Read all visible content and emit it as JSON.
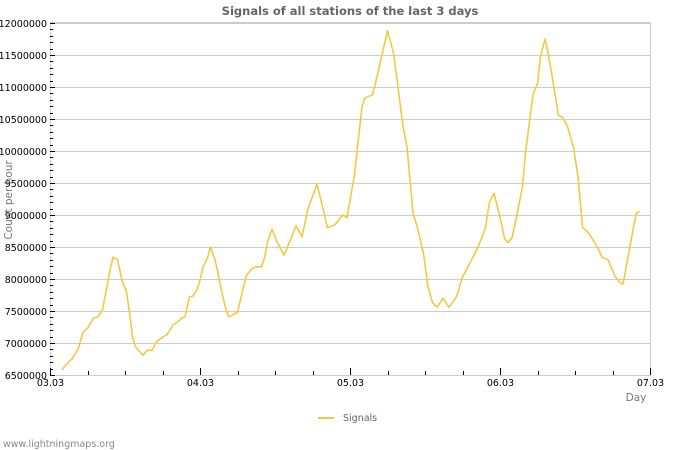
{
  "chart_data": {
    "type": "line",
    "title": "Signals of all stations of the last 3 days",
    "xlabel": "Day",
    "ylabel": "Count per hour",
    "xlim": [
      0,
      4
    ],
    "ylim": [
      6500000,
      12000000
    ],
    "x_tick_labels": [
      "03.03",
      "04.03",
      "05.03",
      "06.03",
      "07.03"
    ],
    "y_tick_labels": [
      "6500000",
      "7000000",
      "7500000",
      "8000000",
      "8500000",
      "9000000",
      "9500000",
      "10000000",
      "10500000",
      "11000000",
      "11500000",
      "12000000"
    ],
    "y_ticks": [
      6500000,
      7000000,
      7500000,
      8000000,
      8500000,
      9000000,
      9500000,
      10000000,
      10500000,
      11000000,
      11500000,
      12000000
    ],
    "grid": true,
    "legend_position": "bottom-center",
    "series": [
      {
        "name": "Signals",
        "color": "#f5c842",
        "points": [
          [
            0.08,
            6580000
          ],
          [
            0.11,
            6670000
          ],
          [
            0.15,
            6760000
          ],
          [
            0.19,
            6920000
          ],
          [
            0.22,
            7170000
          ],
          [
            0.25,
            7230000
          ],
          [
            0.29,
            7390000
          ],
          [
            0.32,
            7410000
          ],
          [
            0.35,
            7520000
          ],
          [
            0.38,
            7880000
          ],
          [
            0.4,
            8140000
          ],
          [
            0.42,
            8340000
          ],
          [
            0.45,
            8300000
          ],
          [
            0.48,
            7980000
          ],
          [
            0.51,
            7800000
          ],
          [
            0.53,
            7480000
          ],
          [
            0.55,
            7090000
          ],
          [
            0.57,
            6940000
          ],
          [
            0.6,
            6860000
          ],
          [
            0.62,
            6810000
          ],
          [
            0.65,
            6890000
          ],
          [
            0.68,
            6880000
          ],
          [
            0.71,
            7020000
          ],
          [
            0.75,
            7090000
          ],
          [
            0.78,
            7130000
          ],
          [
            0.82,
            7280000
          ],
          [
            0.85,
            7330000
          ],
          [
            0.88,
            7390000
          ],
          [
            0.9,
            7410000
          ],
          [
            0.93,
            7720000
          ],
          [
            0.95,
            7730000
          ],
          [
            0.98,
            7830000
          ],
          [
            1.0,
            7980000
          ],
          [
            1.02,
            8190000
          ],
          [
            1.05,
            8330000
          ],
          [
            1.07,
            8500000
          ],
          [
            1.1,
            8300000
          ],
          [
            1.12,
            8090000
          ],
          [
            1.15,
            7750000
          ],
          [
            1.17,
            7550000
          ],
          [
            1.19,
            7410000
          ],
          [
            1.22,
            7440000
          ],
          [
            1.25,
            7480000
          ],
          [
            1.28,
            7780000
          ],
          [
            1.31,
            8060000
          ],
          [
            1.35,
            8170000
          ],
          [
            1.38,
            8190000
          ],
          [
            1.41,
            8190000
          ],
          [
            1.43,
            8330000
          ],
          [
            1.45,
            8580000
          ],
          [
            1.48,
            8780000
          ],
          [
            1.51,
            8600000
          ],
          [
            1.56,
            8370000
          ],
          [
            1.6,
            8600000
          ],
          [
            1.64,
            8830000
          ],
          [
            1.68,
            8660000
          ],
          [
            1.72,
            9100000
          ],
          [
            1.78,
            9480000
          ],
          [
            1.81,
            9200000
          ],
          [
            1.85,
            8800000
          ],
          [
            1.9,
            8850000
          ],
          [
            1.95,
            9000000
          ],
          [
            1.98,
            8960000
          ],
          [
            2.03,
            9630000
          ],
          [
            2.05,
            10060000
          ],
          [
            2.08,
            10690000
          ],
          [
            2.1,
            10830000
          ],
          [
            2.15,
            10880000
          ],
          [
            2.17,
            11060000
          ],
          [
            2.21,
            11470000
          ],
          [
            2.25,
            11880000
          ],
          [
            2.29,
            11530000
          ],
          [
            2.32,
            11000000
          ],
          [
            2.35,
            10440000
          ],
          [
            2.38,
            10060000
          ],
          [
            2.4,
            9550000
          ],
          [
            2.42,
            9030000
          ],
          [
            2.45,
            8800000
          ],
          [
            2.49,
            8400000
          ],
          [
            2.52,
            7880000
          ],
          [
            2.55,
            7630000
          ],
          [
            2.58,
            7560000
          ],
          [
            2.62,
            7700000
          ],
          [
            2.66,
            7560000
          ],
          [
            2.71,
            7720000
          ],
          [
            2.75,
            8030000
          ],
          [
            2.8,
            8250000
          ],
          [
            2.85,
            8480000
          ],
          [
            2.9,
            8770000
          ],
          [
            2.93,
            9200000
          ],
          [
            2.96,
            9340000
          ],
          [
            3.0,
            8960000
          ],
          [
            3.03,
            8640000
          ],
          [
            3.05,
            8570000
          ],
          [
            3.08,
            8640000
          ],
          [
            3.11,
            8970000
          ],
          [
            3.15,
            9440000
          ],
          [
            3.17,
            9970000
          ],
          [
            3.2,
            10520000
          ],
          [
            3.22,
            10880000
          ],
          [
            3.25,
            11060000
          ],
          [
            3.27,
            11470000
          ],
          [
            3.3,
            11750000
          ],
          [
            3.31,
            11660000
          ],
          [
            3.34,
            11270000
          ],
          [
            3.37,
            10840000
          ],
          [
            3.39,
            10560000
          ],
          [
            3.42,
            10520000
          ],
          [
            3.45,
            10380000
          ],
          [
            3.49,
            10060000
          ],
          [
            3.52,
            9600000
          ],
          [
            3.55,
            8810000
          ],
          [
            3.59,
            8720000
          ],
          [
            3.65,
            8500000
          ],
          [
            3.68,
            8340000
          ],
          [
            3.72,
            8300000
          ],
          [
            3.77,
            8030000
          ],
          [
            3.8,
            7940000
          ],
          [
            3.82,
            7920000
          ],
          [
            3.85,
            8300000
          ],
          [
            3.89,
            8810000
          ],
          [
            3.91,
            9030000
          ],
          [
            3.93,
            9060000
          ]
        ]
      }
    ]
  },
  "legend": {
    "items": [
      {
        "label": "Signals",
        "color": "#f5c842"
      }
    ]
  },
  "footer": {
    "source": "www.lightningmaps.org"
  }
}
